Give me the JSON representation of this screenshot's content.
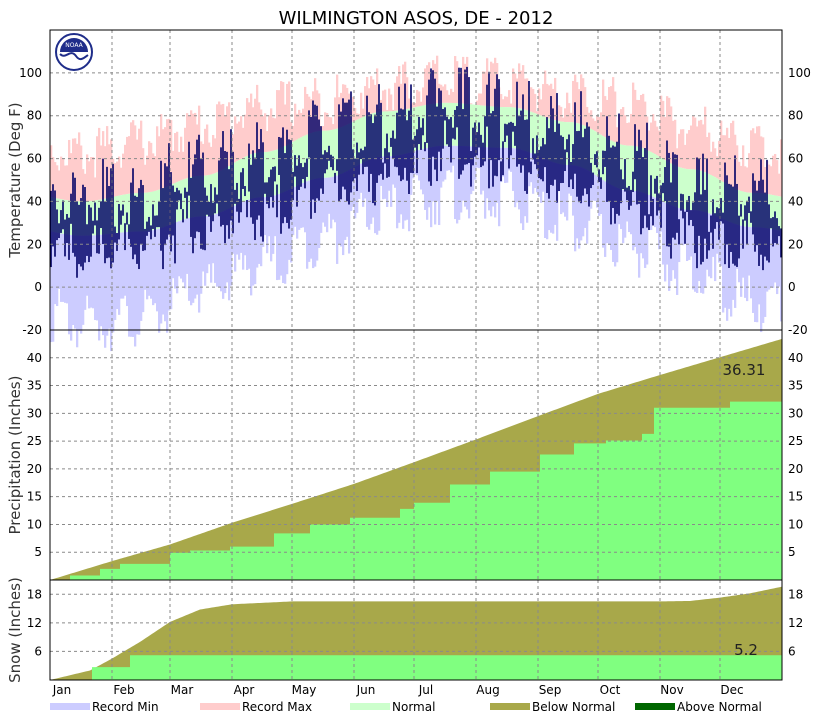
{
  "title": "WILMINGTON   ASOS, DE - 2012",
  "months": [
    "Jan",
    "Feb",
    "Mar",
    "Apr",
    "May",
    "Jun",
    "Jul",
    "Aug",
    "Sep",
    "Oct",
    "Nov",
    "Dec"
  ],
  "colors": {
    "record_min": "#ccccff",
    "record_max": "#ffcccc",
    "normal": "#ccffcc",
    "below_normal": "#a8a84a",
    "above_normal": "#006600",
    "actual_fill": "#80ff80",
    "observed": "#000066"
  },
  "legend": [
    {
      "label": "Record Min",
      "color": "#ccccff"
    },
    {
      "label": "Record Max",
      "color": "#ffcccc"
    },
    {
      "label": "Normal",
      "color": "#ccffcc"
    },
    {
      "label": "Below Normal",
      "color": "#a8a84a"
    },
    {
      "label": "Above Normal",
      "color": "#006600"
    }
  ],
  "logo_text": "NOAA",
  "chart_data": [
    {
      "type": "area",
      "panel": "temperature",
      "ylabel": "Temperature (Deg F)",
      "ylim": [
        -20,
        120
      ],
      "yticks": [
        -20,
        0,
        20,
        40,
        60,
        80,
        100
      ],
      "grid": true,
      "x_months": [
        "Jan",
        "Feb",
        "Mar",
        "Apr",
        "May",
        "Jun",
        "Jul",
        "Aug",
        "Sep",
        "Oct",
        "Nov",
        "Dec"
      ],
      "normal_high_by_month": [
        40,
        44,
        52,
        63,
        73,
        82,
        86,
        84,
        77,
        66,
        55,
        44
      ],
      "normal_low_by_month": [
        24,
        26,
        33,
        42,
        51,
        61,
        66,
        65,
        57,
        45,
        36,
        28
      ],
      "record_high_by_month": [
        68,
        74,
        82,
        90,
        93,
        99,
        103,
        101,
        97,
        91,
        80,
        72
      ],
      "record_low_by_month": [
        -10,
        -8,
        5,
        18,
        30,
        42,
        50,
        48,
        38,
        26,
        14,
        0
      ],
      "observed_high_by_month": [
        48,
        52,
        62,
        68,
        78,
        84,
        95,
        88,
        82,
        70,
        54,
        52
      ],
      "observed_low_by_month": [
        28,
        30,
        38,
        44,
        56,
        62,
        72,
        68,
        60,
        48,
        32,
        32
      ]
    },
    {
      "type": "area",
      "panel": "precipitation",
      "ylabel": "Precipitation (Inches)",
      "ylim": [
        0,
        45
      ],
      "yticks": [
        5,
        10,
        15,
        20,
        25,
        30,
        35,
        40
      ],
      "grid": true,
      "series": [
        {
          "name": "Normal",
          "x": [
            0,
            31,
            60,
            91,
            121,
            152,
            182,
            213,
            244,
            274,
            305,
            335,
            366
          ],
          "values": [
            0,
            3.4,
            6.4,
            10.3,
            13.7,
            17.3,
            21.2,
            25.3,
            29.5,
            33.5,
            36.9,
            40.1,
            43.4
          ]
        },
        {
          "name": "Observed",
          "x": [
            0,
            10,
            25,
            35,
            60,
            70,
            90,
            112,
            130,
            150,
            175,
            182,
            200,
            220,
            245,
            262,
            278,
            296,
            302,
            340,
            366
          ],
          "values": [
            0,
            0.8,
            2.0,
            2.9,
            4.9,
            5.3,
            6.0,
            8.4,
            10.0,
            11.2,
            12.8,
            13.9,
            17.2,
            19.5,
            22.6,
            24.6,
            25.1,
            26.3,
            31.0,
            32.1,
            36.31
          ]
        }
      ],
      "annotation": "36.31"
    },
    {
      "type": "area",
      "panel": "snow",
      "ylabel": "Snow (Inches)",
      "ylim": [
        0,
        21
      ],
      "yticks": [
        6,
        12,
        18
      ],
      "grid": true,
      "series": [
        {
          "name": "Normal",
          "x": [
            0,
            20,
            31,
            45,
            60,
            75,
            91,
            121,
            305,
            320,
            335,
            350,
            366
          ],
          "values": [
            0,
            2.0,
            4.5,
            8.0,
            12.2,
            14.8,
            15.9,
            16.5,
            16.5,
            16.6,
            17.3,
            18.2,
            19.6
          ]
        },
        {
          "name": "Observed",
          "x": [
            0,
            21,
            40,
            366
          ],
          "values": [
            0,
            2.7,
            5.2,
            5.2
          ]
        }
      ],
      "annotation": "5.2"
    }
  ]
}
